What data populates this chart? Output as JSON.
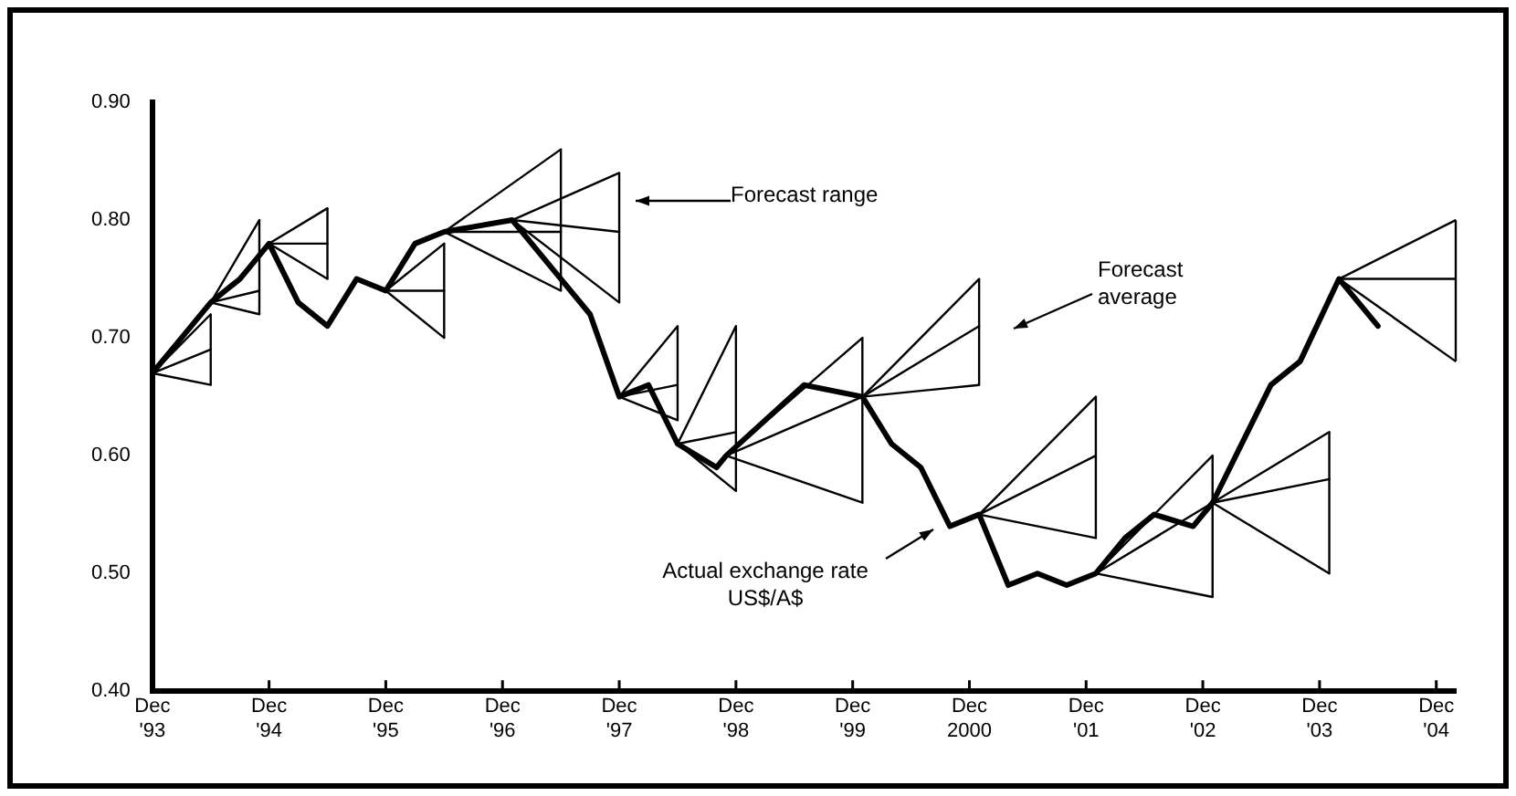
{
  "chart_data": {
    "type": "line",
    "marker": "none",
    "line_style": "solid",
    "xlim": [
      "1993-12",
      "2005-02"
    ],
    "ylim": [
      0.4,
      0.9
    ],
    "xticks": [
      {
        "value": "1993-12",
        "label": "Dec '93"
      },
      {
        "value": "1994-12",
        "label": "Dec '94"
      },
      {
        "value": "1995-12",
        "label": "Dec '95"
      },
      {
        "value": "1996-12",
        "label": "Dec '96"
      },
      {
        "value": "1997-12",
        "label": "Dec '97"
      },
      {
        "value": "1998-12",
        "label": "Dec '98"
      },
      {
        "value": "1999-12",
        "label": "Dec '99"
      },
      {
        "value": "2000-12",
        "label": "Dec 2000"
      },
      {
        "value": "2001-12",
        "label": "Dec '01"
      },
      {
        "value": "2002-12",
        "label": "Dec '02"
      },
      {
        "value": "2003-12",
        "label": "Dec '03"
      },
      {
        "value": "2004-12",
        "label": "Dec '04"
      }
    ],
    "yticks": [
      {
        "value": 0.4,
        "label": "0.40"
      },
      {
        "value": 0.5,
        "label": "0.50"
      },
      {
        "value": 0.6,
        "label": "0.60"
      },
      {
        "value": 0.7,
        "label": "0.70"
      },
      {
        "value": 0.8,
        "label": "0.80"
      },
      {
        "value": 0.9,
        "label": "0.90"
      }
    ],
    "series": [
      {
        "color": "#000000",
        "x": [
          "1993-12",
          "1994-03",
          "1994-06",
          "1994-09",
          "1994-12",
          "1995-03",
          "1995-06",
          "1995-09",
          "1995-12",
          "1996-03",
          "1996-06",
          "1997-01",
          "1997-06",
          "1997-09",
          "1997-12",
          "1998-03",
          "1998-06",
          "1998-10",
          "1998-11",
          "1999-07",
          "2000-01",
          "2000-04",
          "2000-07",
          "2000-10",
          "2001-01",
          "2001-04",
          "2001-07",
          "2001-10",
          "2002-01",
          "2002-04",
          "2002-07",
          "2002-11",
          "2003-01",
          "2003-07",
          "2003-10",
          "2004-02",
          "2004-06"
        ],
        "values": [
          0.67,
          0.7,
          0.73,
          0.75,
          0.78,
          0.73,
          0.71,
          0.75,
          0.74,
          0.78,
          0.79,
          0.8,
          0.75,
          0.72,
          0.65,
          0.66,
          0.61,
          0.59,
          0.6,
          0.66,
          0.65,
          0.61,
          0.59,
          0.54,
          0.55,
          0.49,
          0.5,
          0.49,
          0.5,
          0.53,
          0.55,
          0.54,
          0.56,
          0.66,
          0.68,
          0.75,
          0.71
        ]
      },
      {
        "color": "#000000",
        "x": [
          "1993-12",
          "1994-06",
          null,
          "1994-12",
          "1995-06",
          null,
          "1996-06",
          "1997-06",
          null,
          "1997-12",
          "1998-06",
          null,
          "1998-11",
          "2000-01",
          null,
          "2001-01",
          "2002-01",
          null,
          "2003-01",
          "2004-01"
        ],
        "values": [
          0.67,
          0.72,
          null,
          0.78,
          0.81,
          null,
          0.79,
          0.86,
          null,
          0.65,
          0.71,
          null,
          0.6,
          0.7,
          null,
          0.55,
          0.65,
          null,
          0.56,
          0.62
        ]
      },
      {
        "color": "#000000",
        "x": [
          "1993-12",
          "1994-06",
          null,
          "1994-12",
          "1995-06",
          null,
          "1996-06",
          "1997-06",
          null,
          "1997-12",
          "1998-06",
          null,
          "1998-11",
          "2000-01",
          null,
          "2001-01",
          "2002-01",
          null,
          "2003-01",
          "2004-01"
        ],
        "values": [
          0.67,
          0.69,
          null,
          0.78,
          0.78,
          null,
          0.79,
          0.79,
          null,
          0.65,
          0.66,
          null,
          0.6,
          0.65,
          null,
          0.55,
          0.6,
          null,
          0.56,
          0.58
        ],
        "errors": [
          null,
          [
            0.66,
            0.72
          ],
          null,
          null,
          [
            0.75,
            0.81
          ],
          null,
          null,
          [
            0.74,
            0.86
          ],
          null,
          null,
          [
            0.63,
            0.71
          ],
          null,
          null,
          [
            0.56,
            0.7
          ],
          null,
          null,
          [
            0.53,
            0.65
          ],
          null,
          null,
          [
            0.5,
            0.62
          ]
        ]
      },
      {
        "color": "#000000",
        "x": [
          "1993-12",
          "1994-06",
          null,
          "1994-12",
          "1995-06",
          null,
          "1996-06",
          "1997-06",
          null,
          "1997-12",
          "1998-06",
          null,
          "1998-11",
          "2000-01",
          null,
          "2001-01",
          "2002-01",
          null,
          "2003-01",
          "2004-01"
        ],
        "values": [
          0.67,
          0.66,
          null,
          0.78,
          0.75,
          null,
          0.79,
          0.74,
          null,
          0.65,
          0.63,
          null,
          0.6,
          0.56,
          null,
          0.55,
          0.53,
          null,
          0.56,
          0.5
        ]
      },
      {
        "color": "#000000",
        "x": [
          "1994-06",
          "1994-11",
          null,
          "1995-12",
          "1996-06",
          null,
          "1997-01",
          "1997-12",
          null,
          "1998-06",
          "1998-12",
          null,
          "2000-01",
          "2001-01",
          null,
          "2002-01",
          "2003-01",
          null,
          "2004-02",
          "2005-02"
        ],
        "values": [
          0.73,
          0.8,
          null,
          0.74,
          0.78,
          null,
          0.8,
          0.84,
          null,
          0.61,
          0.71,
          null,
          0.65,
          0.75,
          null,
          0.5,
          0.6,
          null,
          0.75,
          0.8
        ]
      },
      {
        "color": "#000000",
        "x": [
          "1994-06",
          "1994-11",
          null,
          "1995-12",
          "1996-06",
          null,
          "1997-01",
          "1997-12",
          null,
          "1998-06",
          "1998-12",
          null,
          "2000-01",
          "2001-01",
          null,
          "2002-01",
          "2003-01",
          null,
          "2004-02",
          "2005-02"
        ],
        "values": [
          0.73,
          0.74,
          null,
          0.74,
          0.74,
          null,
          0.8,
          0.79,
          null,
          0.61,
          0.62,
          null,
          0.65,
          0.71,
          null,
          0.5,
          0.56,
          null,
          0.75,
          0.75
        ],
        "errors": [
          null,
          [
            0.72,
            0.8
          ],
          null,
          null,
          [
            0.7,
            0.78
          ],
          null,
          null,
          [
            0.73,
            0.84
          ],
          null,
          null,
          [
            0.57,
            0.71
          ],
          null,
          null,
          [
            0.66,
            0.75
          ],
          null,
          null,
          [
            0.48,
            0.6
          ],
          null,
          null,
          [
            0.68,
            0.8
          ]
        ]
      },
      {
        "color": "#000000",
        "x": [
          "1994-06",
          "1994-11",
          null,
          "1995-12",
          "1996-06",
          null,
          "1997-01",
          "1997-12",
          null,
          "1998-06",
          "1998-12",
          null,
          "2000-01",
          "2001-01",
          null,
          "2002-01",
          "2003-01",
          null,
          "2004-02",
          "2005-02"
        ],
        "values": [
          0.73,
          0.72,
          null,
          0.74,
          0.7,
          null,
          0.8,
          0.73,
          null,
          0.61,
          0.57,
          null,
          0.65,
          0.66,
          null,
          0.5,
          0.48,
          null,
          0.75,
          0.68
        ]
      }
    ],
    "annotations": [
      "Forecast range",
      "Forecast average",
      "Actual exchange rate US$/A$"
    ]
  }
}
